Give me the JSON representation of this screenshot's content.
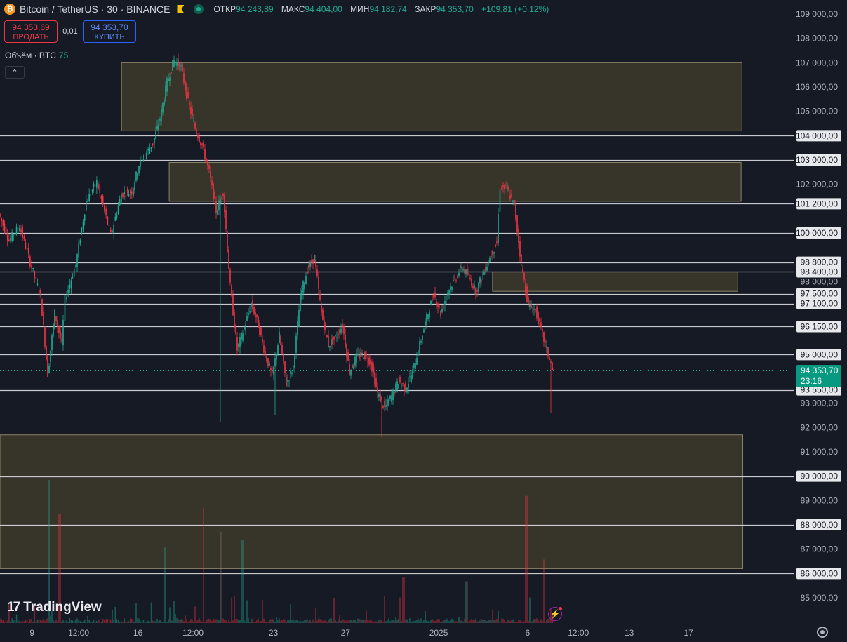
{
  "header": {
    "symbol": "Bitcoin / TetherUS · 30 · BINANCE",
    "logo_glyph": "₿",
    "open_label": "ОТКР",
    "open": "94 243,89",
    "high_label": "МАКС",
    "high": "94 404,00",
    "low_label": "МИН",
    "low": "94 182,74",
    "close_label": "ЗАКР",
    "close": "94 353,70",
    "change": "+109,81 (+0,12%)"
  },
  "trade": {
    "sell_price": "94 353,69",
    "sell_label": "ПРОДАТЬ",
    "spread": "0,01",
    "buy_price": "94 353,70",
    "buy_label": "КУПИТЬ"
  },
  "volume_legend": {
    "label": "Объём · BTC",
    "value": "75"
  },
  "collapse_icon": "chevron-up-icon",
  "watermark": {
    "mark": "17",
    "text": "TradingView"
  },
  "last_price": {
    "price": "94 353,70",
    "countdown": "23:16"
  },
  "colors": {
    "up": "#22ab94",
    "down": "#f23645",
    "zone_fill": "#3d3a2a",
    "zone_border": "#8a8366",
    "background": "#161a25"
  },
  "chart_data": {
    "type": "candlestick",
    "ylim": [
      84400,
      109300
    ],
    "y_ticks": [
      {
        "value": 109000,
        "label": "109 000,00"
      },
      {
        "value": 108000,
        "label": "108 000,00"
      },
      {
        "value": 107000,
        "label": "107 000,00"
      },
      {
        "value": 106000,
        "label": "106 000,00"
      },
      {
        "value": 105000,
        "label": "105 000,00"
      },
      {
        "value": 102000,
        "label": "102 000,00"
      },
      {
        "value": 98000,
        "label": "98 000,00"
      },
      {
        "value": 93000,
        "label": "93 000,00"
      },
      {
        "value": 92000,
        "label": "92 000,00"
      },
      {
        "value": 91000,
        "label": "91 000,00"
      },
      {
        "value": 89000,
        "label": "89 000,00"
      },
      {
        "value": 87000,
        "label": "87 000,00"
      },
      {
        "value": 85000,
        "label": "85 000,00"
      }
    ],
    "x_ticks": [
      {
        "label": "9",
        "bar": 0.1
      },
      {
        "label": "12:00",
        "bar": 0.155
      },
      {
        "label": "16",
        "bar": 0.225
      },
      {
        "label": "12:00",
        "bar": 0.29
      },
      {
        "label": "23",
        "bar": 0.385
      },
      {
        "label": "27",
        "bar": 0.47
      },
      {
        "label": "2025",
        "bar": 0.58
      },
      {
        "label": "6",
        "bar": 0.685
      },
      {
        "label": "12:00",
        "bar": 0.745
      },
      {
        "label": "13",
        "bar": 0.805
      },
      {
        "label": "17",
        "bar": 0.875
      }
    ],
    "horizontal_levels": [
      {
        "value": 104000,
        "label": "104 000,00"
      },
      {
        "value": 103000,
        "label": "103 000,00"
      },
      {
        "value": 101200,
        "label": "101 200,00"
      },
      {
        "value": 100000,
        "label": "100 000,00"
      },
      {
        "value": 98800,
        "label": "98 800,00"
      },
      {
        "value": 98400,
        "label": "98 400,00"
      },
      {
        "value": 97500,
        "label": "97 500,00"
      },
      {
        "value": 97100,
        "label": "97 100,00"
      },
      {
        "value": 96150,
        "label": "96 150,00"
      },
      {
        "value": 95000,
        "label": "95 000,00"
      },
      {
        "value": 93550,
        "label": "93 550,00"
      },
      {
        "value": 90000,
        "label": "90 000,00"
      },
      {
        "value": 88000,
        "label": "88 000,00"
      },
      {
        "value": 86000,
        "label": "86 000,00"
      }
    ],
    "zones": [
      {
        "from_frac": 0.153,
        "to_frac": 0.876,
        "low": 104200,
        "high": 107000
      },
      {
        "from_frac": 0.213,
        "to_frac": 0.875,
        "low": 101300,
        "high": 102900
      },
      {
        "from_frac": 0.62,
        "to_frac": 0.871,
        "low": 97600,
        "high": 98400
      },
      {
        "from_frac": 0.0,
        "to_frac": 0.877,
        "low": 86200,
        "high": 91700
      }
    ],
    "path_keypoints": [
      [
        0,
        100800
      ],
      [
        3,
        99700
      ],
      [
        6,
        100300
      ],
      [
        9,
        98800
      ],
      [
        12,
        97400
      ],
      [
        14,
        94200
      ],
      [
        16,
        96700
      ],
      [
        18,
        95400
      ],
      [
        19,
        97300
      ],
      [
        22,
        98700
      ],
      [
        25,
        101300
      ],
      [
        28,
        102100
      ],
      [
        32,
        99900
      ],
      [
        35,
        101600
      ],
      [
        38,
        101700
      ],
      [
        40,
        102800
      ],
      [
        44,
        103700
      ],
      [
        46,
        104700
      ],
      [
        48,
        106200
      ],
      [
        50,
        107100
      ],
      [
        52,
        106800
      ],
      [
        54,
        105400
      ],
      [
        56,
        104300
      ],
      [
        58,
        103600
      ],
      [
        60,
        102500
      ],
      [
        62,
        100900
      ],
      [
        64,
        101700
      ],
      [
        66,
        97800
      ],
      [
        68,
        95200
      ],
      [
        70,
        96100
      ],
      [
        72,
        97100
      ],
      [
        74,
        96200
      ],
      [
        76,
        95000
      ],
      [
        78,
        94100
      ],
      [
        80,
        95800
      ],
      [
        82,
        93800
      ],
      [
        84,
        94500
      ],
      [
        86,
        97400
      ],
      [
        88,
        98500
      ],
      [
        90,
        99000
      ],
      [
        92,
        96700
      ],
      [
        94,
        95400
      ],
      [
        96,
        95700
      ],
      [
        98,
        96200
      ],
      [
        100,
        94300
      ],
      [
        102,
        94900
      ],
      [
        104,
        95000
      ],
      [
        106,
        94700
      ],
      [
        108,
        93400
      ],
      [
        110,
        92800
      ],
      [
        112,
        93300
      ],
      [
        114,
        93900
      ],
      [
        116,
        93600
      ],
      [
        118,
        94300
      ],
      [
        120,
        95400
      ],
      [
        122,
        96500
      ],
      [
        124,
        97500
      ],
      [
        126,
        96700
      ],
      [
        128,
        97600
      ],
      [
        130,
        98100
      ],
      [
        132,
        98600
      ],
      [
        134,
        98200
      ],
      [
        136,
        97600
      ],
      [
        138,
        98300
      ],
      [
        140,
        99000
      ],
      [
        142,
        99600
      ],
      [
        143,
        101900
      ],
      [
        145,
        101800
      ],
      [
        147,
        101100
      ],
      [
        149,
        98700
      ],
      [
        151,
        97000
      ],
      [
        153,
        96800
      ],
      [
        155,
        95800
      ],
      [
        157,
        94800
      ],
      [
        158,
        94354
      ]
    ],
    "volume": {
      "base_height_frac": 0.012,
      "spikes": [
        [
          14,
          0.72
        ],
        [
          17,
          0.55
        ],
        [
          47,
          0.38
        ],
        [
          58,
          0.58
        ],
        [
          63,
          0.46
        ],
        [
          69,
          0.42
        ],
        [
          115,
          0.23
        ],
        [
          133,
          0.21
        ],
        [
          150,
          0.64
        ],
        [
          155,
          0.32
        ]
      ]
    }
  }
}
